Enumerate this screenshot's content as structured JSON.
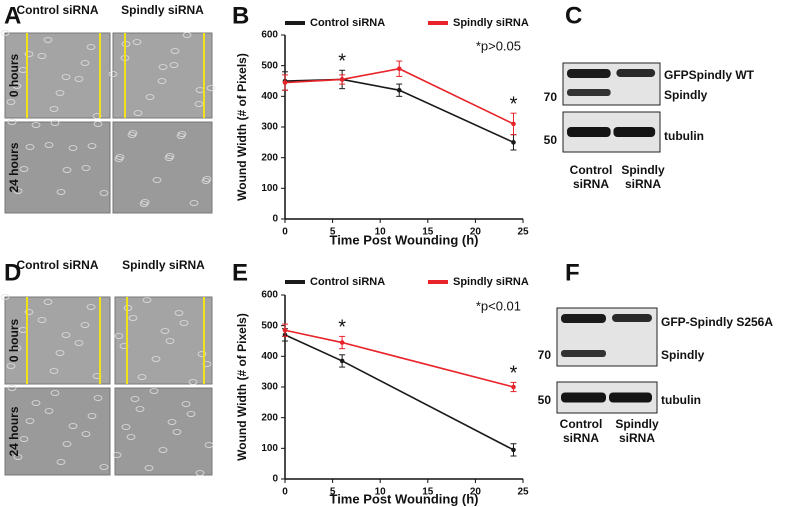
{
  "chart_data": [
    {
      "type": "line",
      "panel": "B",
      "x": [
        0,
        6,
        12,
        24
      ],
      "series": [
        {
          "name": "Control siRNA",
          "color": "#1a1a1a",
          "values": [
            450,
            455,
            420,
            250
          ],
          "errors": [
            30,
            30,
            20,
            25
          ]
        },
        {
          "name": "Spindly siRNA",
          "color": "#e8242a",
          "values": [
            445,
            455,
            490,
            310
          ],
          "errors": [
            25,
            15,
            25,
            35
          ]
        }
      ],
      "xlim": [
        0,
        25
      ],
      "xticks": [
        0,
        5,
        10,
        15,
        20,
        25
      ],
      "ylim": [
        0,
        600
      ],
      "yticks": [
        0,
        100,
        200,
        300,
        400,
        500,
        600
      ],
      "x_label": "Time Post Wounding (h)",
      "y_label": "Wound Width (# of Pixels)",
      "annotations": [
        {
          "text": "*",
          "x": 6
        },
        {
          "text": "*",
          "x": 24
        }
      ],
      "note": "*p>0.05",
      "legend": "top"
    },
    {
      "type": "line",
      "panel": "E",
      "x": [
        0,
        6,
        24
      ],
      "series": [
        {
          "name": "Control siRNA",
          "color": "#1a1a1a",
          "values": [
            470,
            385,
            95
          ],
          "errors": [
            20,
            20,
            20
          ]
        },
        {
          "name": "Spindly siRNA",
          "color": "#e8242a",
          "values": [
            485,
            445,
            300
          ],
          "errors": [
            20,
            20,
            15
          ]
        }
      ],
      "xlim": [
        0,
        25
      ],
      "xticks": [
        0,
        5,
        10,
        15,
        20,
        25
      ],
      "ylim": [
        0,
        600
      ],
      "yticks": [
        0,
        100,
        200,
        300,
        400,
        500,
        600
      ],
      "x_label": "Time Post Wounding (h)",
      "y_label": "Wound Width (# of Pixels)",
      "annotations": [
        {
          "text": "*",
          "x": 6
        },
        {
          "text": "*",
          "x": 24
        }
      ],
      "note": "*p<0.01",
      "legend": "top"
    }
  ],
  "images": [
    {
      "panel": "A",
      "columns": [
        "Control siRNA",
        "Spindly siRNA"
      ],
      "rows": [
        "0 hours",
        "24 hours"
      ]
    },
    {
      "panel": "D",
      "columns": [
        "Control siRNA",
        "Spindly siRNA"
      ],
      "rows": [
        "0 hours",
        "24 hours"
      ]
    }
  ],
  "blots": [
    {
      "panel": "C",
      "markers": [
        "70",
        "50"
      ],
      "bands": [
        "GFPSpindly WT",
        "Spindly",
        "tubulin"
      ],
      "lanes": [
        "Control siRNA",
        "Spindly siRNA"
      ]
    },
    {
      "panel": "F",
      "markers": [
        "70",
        "50"
      ],
      "bands": [
        "GFP-Spindly S256A",
        "Spindly",
        "tubulin"
      ],
      "lanes": [
        "Control siRNA",
        "Spindly siRNA"
      ]
    }
  ]
}
